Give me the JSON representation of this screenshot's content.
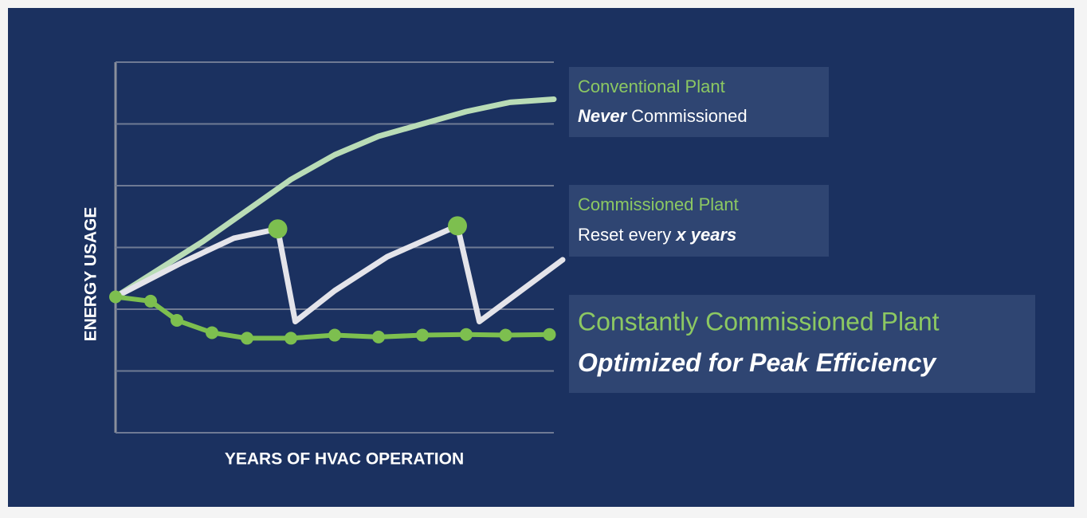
{
  "chart_data": {
    "type": "line",
    "xlabel": "YEARS OF HVAC OPERATION",
    "ylabel": "ENERGY USAGE",
    "xlim": [
      0,
      10
    ],
    "ylim": [
      0,
      6
    ],
    "yticks": [
      0,
      1,
      2,
      3,
      4,
      5,
      6
    ],
    "grid": true,
    "series": [
      {
        "name": "Conventional Plant",
        "color": "#b9dcb6",
        "width": 7,
        "note": [
          {
            "text": "Never",
            "style": "bold-italic"
          },
          {
            "text": "Commissioned",
            "style": "normal"
          }
        ],
        "x": [
          0,
          1,
          2,
          3,
          4,
          5,
          6,
          7,
          8,
          9,
          10
        ],
        "values": [
          2.2,
          2.65,
          3.1,
          3.6,
          4.1,
          4.5,
          4.8,
          5.0,
          5.2,
          5.35,
          5.4
        ]
      },
      {
        "name": "Commissioned Plant",
        "color": "#e4e4ea",
        "width": 7,
        "note": [
          {
            "text": "Reset every",
            "style": "normal"
          },
          {
            "text": "x years",
            "style": "bold-italic"
          }
        ],
        "x": [
          0,
          1.5,
          2.7,
          3.7,
          4.1,
          5,
          6.2,
          7.8,
          8.3,
          10.2
        ],
        "values": [
          2.2,
          2.75,
          3.15,
          3.3,
          1.8,
          2.3,
          2.85,
          3.35,
          1.8,
          2.8
        ],
        "markers": [
          3,
          7
        ],
        "marker_color": "#7dbf4f"
      },
      {
        "name": "Constantly Commissioned Plant",
        "color": "#7dbf4f",
        "width": 6,
        "note": [
          {
            "text": "Optimized  for  Peak Efficiency",
            "style": "bold-italic"
          }
        ],
        "x": [
          0,
          0.8,
          1.4,
          2.2,
          3,
          4,
          5,
          6,
          7,
          8,
          8.9,
          9.9
        ],
        "values": [
          2.2,
          2.13,
          1.82,
          1.62,
          1.53,
          1.53,
          1.58,
          1.55,
          1.58,
          1.59,
          1.58,
          1.59
        ],
        "dots": true
      }
    ]
  }
}
